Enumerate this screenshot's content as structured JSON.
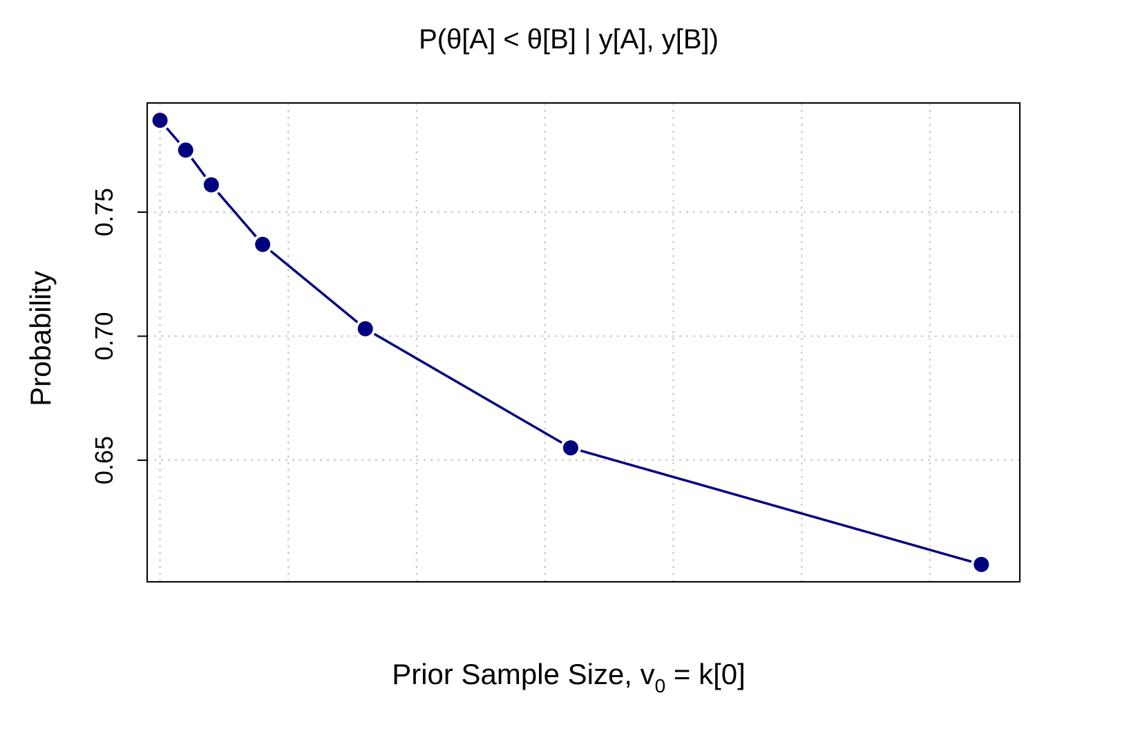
{
  "chart_data": {
    "type": "line",
    "title": "P(θ[A] < θ[B] | y[A], y[B])",
    "xlabel": {
      "prefix": "Prior Sample Size, v",
      "subscript": "0",
      "suffix": " = k[0]"
    },
    "ylabel": "Probability",
    "y_ticks": [
      "0.65",
      "0.70",
      "0.75"
    ],
    "y_tick_values": [
      0.65,
      0.7,
      0.75
    ],
    "xlim": [
      0.5,
      34.5
    ],
    "ylim": [
      0.601,
      0.794
    ],
    "x_grid": [
      1,
      6,
      11,
      16,
      21,
      26,
      31
    ],
    "grid": true,
    "series": [
      {
        "color": "#00007F",
        "x": [
          1,
          2,
          3,
          5,
          9,
          17,
          33
        ],
        "y": [
          0.787,
          0.775,
          0.761,
          0.737,
          0.703,
          0.655,
          0.608
        ]
      }
    ]
  }
}
